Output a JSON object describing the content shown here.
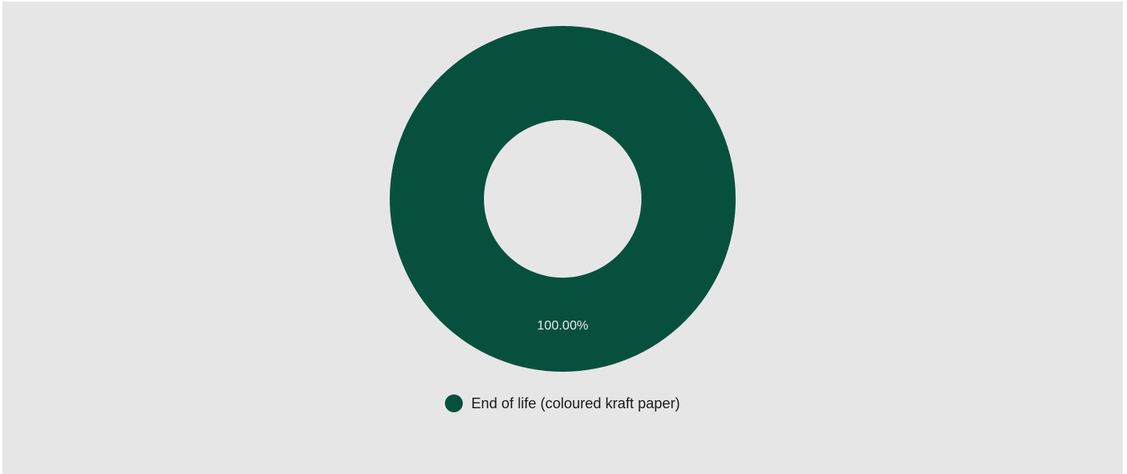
{
  "chart_data": {
    "type": "pie",
    "variant": "donut",
    "categories": [
      "End of life (coloured kraft paper)"
    ],
    "values": [
      100.0
    ],
    "value_labels": [
      "100.00%"
    ],
    "colors": [
      "#08503e"
    ],
    "legend_position": "bottom"
  }
}
